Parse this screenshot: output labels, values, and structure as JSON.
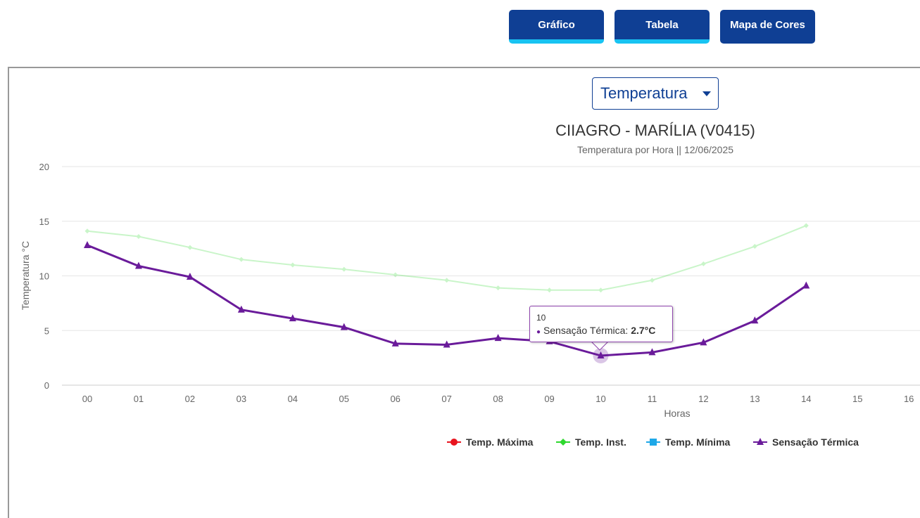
{
  "buttons": [
    "Gráfico",
    "Tabela",
    "Mapa de Cores"
  ],
  "dropdown": "Temperatura",
  "tooltip": {
    "title": "10",
    "text": "Sensação Térmica:",
    "value": "2.7°C"
  },
  "chart_data": {
    "type": "line",
    "title": "CIIAGRO - MARÍLIA (V0415)",
    "subtitle": "Temperatura por Hora || 12/06/2025",
    "x_label": "Horas",
    "y_label": "Temperatura °C",
    "categories": [
      "00",
      "01",
      "02",
      "03",
      "04",
      "05",
      "06",
      "07",
      "08",
      "09",
      "10",
      "11",
      "12",
      "13",
      "14",
      "15",
      "16"
    ],
    "series": [
      {
        "name": "Temp. Máxima",
        "color": "#e8141e",
        "marker": "circle",
        "values": [
          null,
          null,
          null,
          null,
          null,
          null,
          null,
          null,
          null,
          null,
          null,
          null,
          null,
          null,
          null,
          null,
          null
        ]
      },
      {
        "name": "Temp. Inst.",
        "color": "#2ed82e",
        "marker": "diamond",
        "values": [
          14.1,
          13.6,
          12.6,
          11.5,
          11.0,
          10.6,
          10.1,
          9.6,
          8.9,
          8.7,
          8.7,
          9.6,
          11.1,
          12.7,
          14.6,
          null,
          null
        ]
      },
      {
        "name": "Temp. Mínima",
        "color": "#1ea8e8",
        "marker": "square",
        "values": [
          null,
          null,
          null,
          null,
          null,
          null,
          null,
          null,
          null,
          null,
          null,
          null,
          null,
          null,
          null,
          null,
          null
        ]
      },
      {
        "name": "Sensação Térmica",
        "color": "#6a1b9a",
        "marker": "triangle",
        "values": [
          12.8,
          10.9,
          9.9,
          6.9,
          6.1,
          5.3,
          3.8,
          3.7,
          4.3,
          4.0,
          2.7,
          3.0,
          3.9,
          5.9,
          9.1,
          null,
          null
        ]
      }
    ],
    "faded_series": [
      1
    ],
    "ylim": [
      0,
      20
    ],
    "yticks": [
      0,
      5,
      10,
      15,
      20
    ],
    "grid": true
  }
}
